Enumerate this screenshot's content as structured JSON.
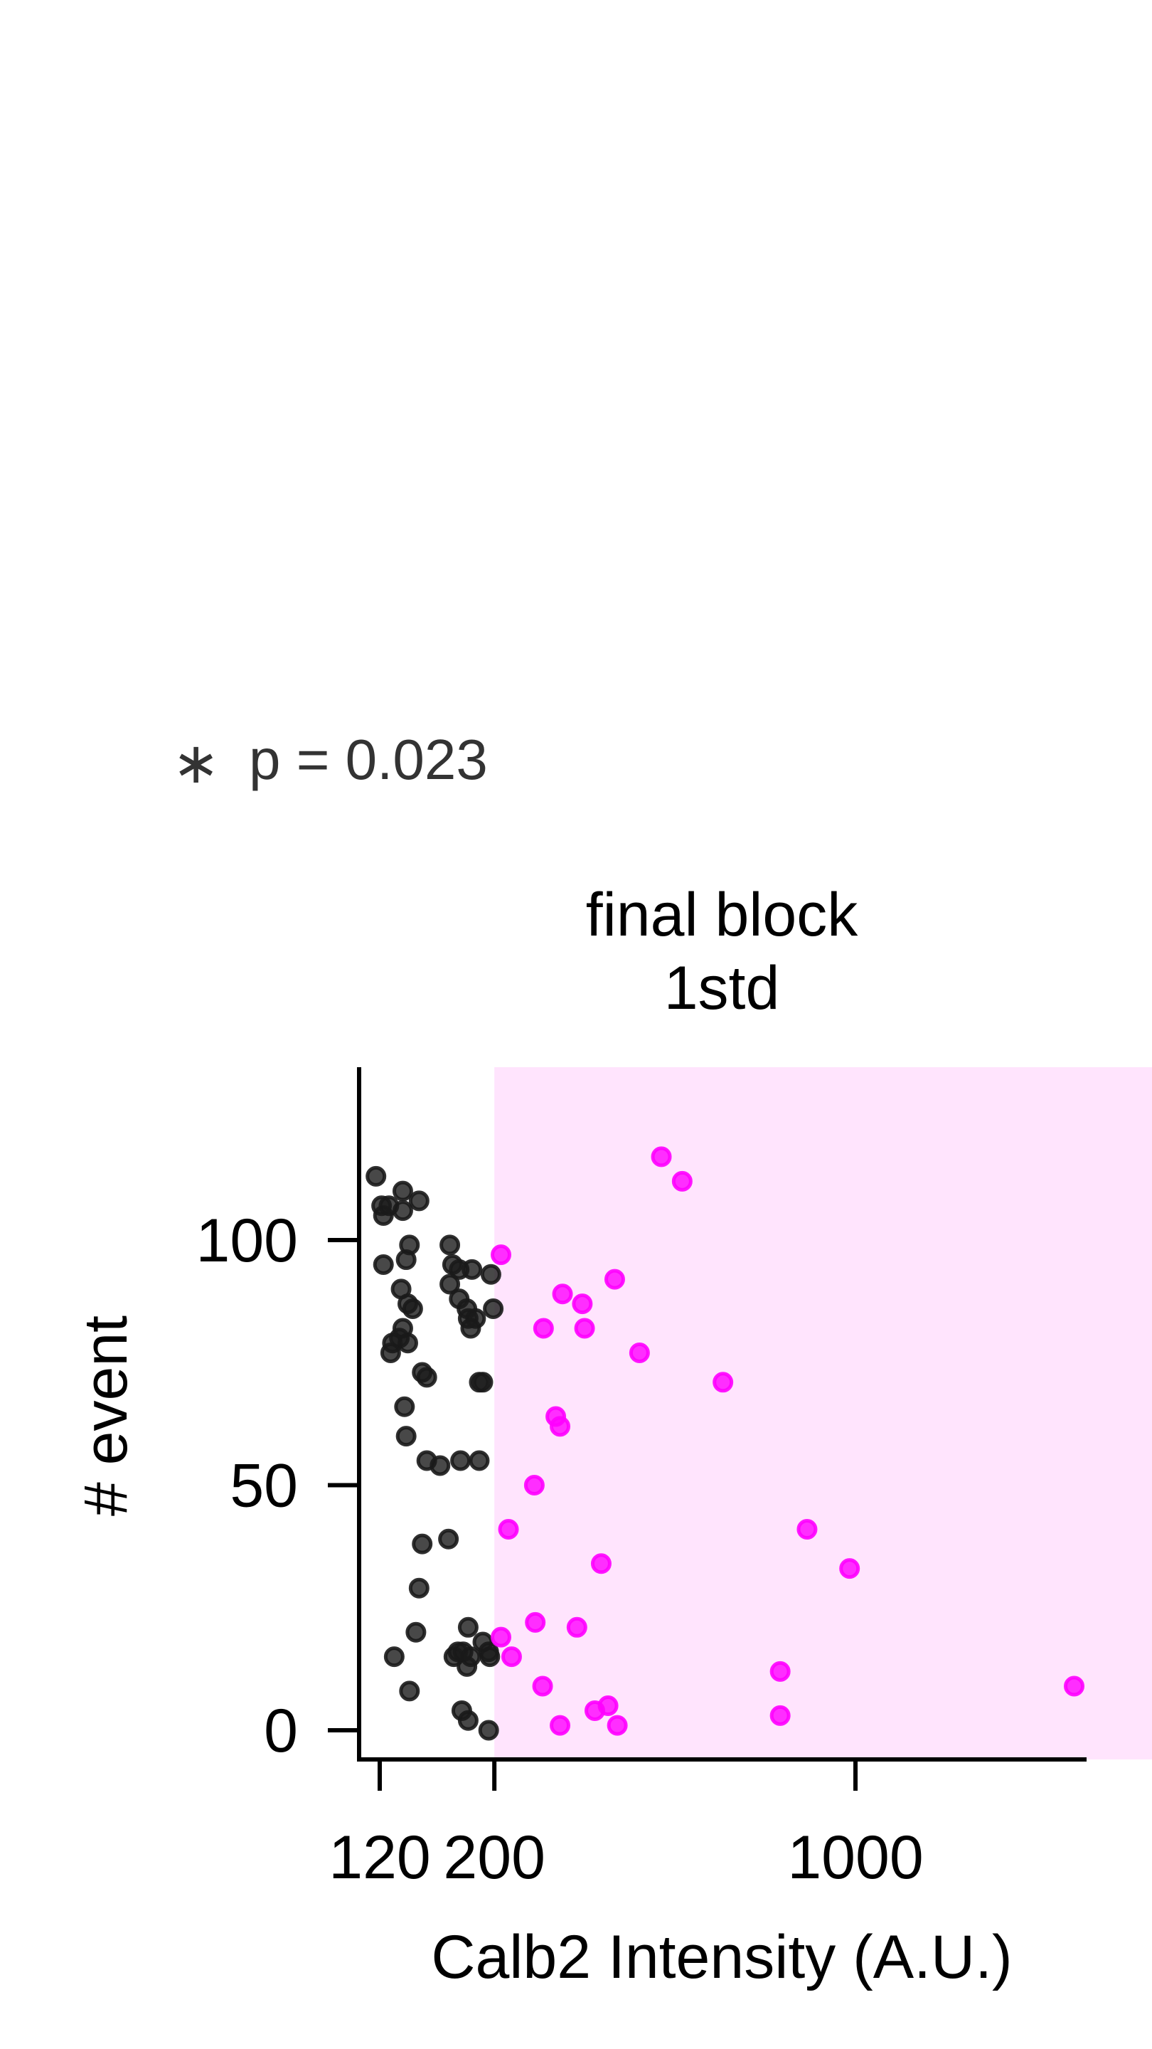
{
  "annotation": {
    "star": "∗",
    "pvalue": "p = 0.023"
  },
  "colors": {
    "left_points": "#1a1a1a",
    "right_points": "#ff00ff",
    "highlight": "#ffe4fd",
    "axis": "#000000",
    "annotation_text": "#333333"
  },
  "chart_data": {
    "type": "scatter",
    "title": "final block\n1std",
    "xlabel": "Calb2 Intensity (A.U.)",
    "ylabel": "# event",
    "x_scale": "log",
    "x_ticks": [
      120,
      200,
      1000
    ],
    "x_tick_labels": [
      "120",
      "200",
      "1000"
    ],
    "xlim": [
      115,
      5800
    ],
    "y_ticks": [
      0,
      50,
      100
    ],
    "y_tick_labels": [
      "0",
      "50",
      "100"
    ],
    "ylim": [
      -6,
      134
    ],
    "highlight_region": {
      "x": [
        200,
        5200
      ],
      "y": [
        -6,
        134
      ]
    },
    "grid": false,
    "legend": "none",
    "series": [
      {
        "points": [
          [
            118,
            113
          ],
          [
            122,
            105
          ],
          [
            121,
            107
          ],
          [
            125,
            107
          ],
          [
            133,
            110
          ],
          [
            133,
            106
          ],
          [
            143,
            108
          ],
          [
            122,
            95
          ],
          [
            135,
            96
          ],
          [
            137,
            99
          ],
          [
            132,
            90
          ],
          [
            136,
            87
          ],
          [
            139,
            86
          ],
          [
            133,
            82
          ],
          [
            131,
            80
          ],
          [
            127,
            79
          ],
          [
            136,
            79
          ],
          [
            126,
            77
          ],
          [
            145,
            73
          ],
          [
            148,
            72
          ],
          [
            134,
            66
          ],
          [
            135,
            60
          ],
          [
            148,
            55
          ],
          [
            145,
            38
          ],
          [
            143,
            29
          ],
          [
            141,
            20
          ],
          [
            128,
            15
          ],
          [
            137,
            8
          ],
          [
            166,
            95
          ],
          [
            164,
            99
          ],
          [
            164,
            91
          ],
          [
            171,
            88
          ],
          [
            181,
            94
          ],
          [
            171,
            94
          ],
          [
            177,
            86
          ],
          [
            178,
            84
          ],
          [
            184,
            84
          ],
          [
            197,
            93
          ],
          [
            199,
            86
          ],
          [
            180,
            82
          ],
          [
            187,
            71
          ],
          [
            190,
            71
          ],
          [
            157,
            54
          ],
          [
            172,
            55
          ],
          [
            187,
            55
          ],
          [
            163,
            39
          ],
          [
            178,
            21
          ],
          [
            190,
            18
          ],
          [
            195,
            16
          ],
          [
            196,
            15
          ],
          [
            167,
            15
          ],
          [
            170,
            16
          ],
          [
            174,
            16
          ],
          [
            177,
            13
          ],
          [
            180,
            15
          ],
          [
            173,
            4
          ],
          [
            178,
            2
          ],
          [
            195,
            0
          ]
        ]
      },
      {
        "points": [
          [
            206,
            97
          ],
          [
            213,
            41
          ],
          [
            239,
            50
          ],
          [
            206,
            19
          ],
          [
            216,
            15
          ],
          [
            240,
            22
          ],
          [
            248,
            9
          ],
          [
            249,
            82
          ],
          [
            263,
            64
          ],
          [
            268,
            62
          ],
          [
            271,
            89
          ],
          [
            289,
            21
          ],
          [
            268,
            1
          ],
          [
            296,
            87
          ],
          [
            299,
            82
          ],
          [
            313,
            4
          ],
          [
            322,
            34
          ],
          [
            332,
            5
          ],
          [
            346,
            1
          ],
          [
            342,
            92
          ],
          [
            382,
            77
          ],
          [
            421,
            117
          ],
          [
            462,
            112
          ],
          [
            554,
            71
          ],
          [
            715,
            12
          ],
          [
            715,
            3
          ],
          [
            806,
            41
          ],
          [
            974,
            33
          ],
          [
            2650,
            9
          ]
        ]
      }
    ]
  }
}
